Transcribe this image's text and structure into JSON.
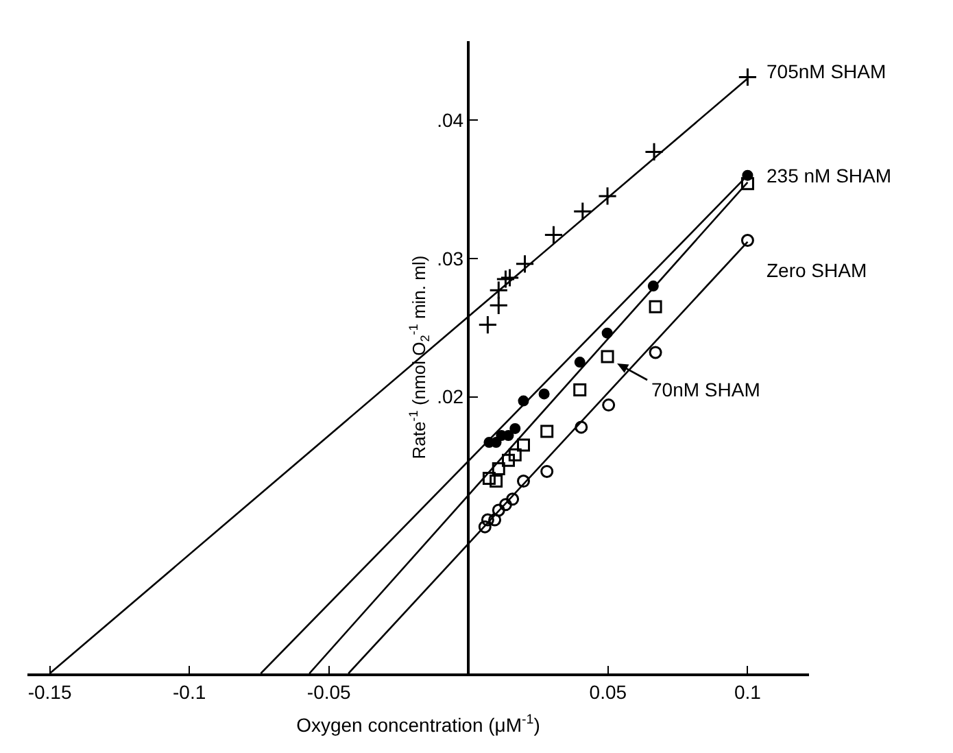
{
  "chart_data": {
    "type": "scatter",
    "xlabel": "Oxygen concentration (μM$^{-1}$)",
    "ylabel": "Rate$^{-1}$ (nmol O$_{2}$$^{-1}$ min. ml)",
    "xlim": [
      -0.158,
      0.122
    ],
    "ylim": [
      0,
      0.0457
    ],
    "xticks": [
      -0.15,
      -0.1,
      -0.05,
      0.05,
      0.1
    ],
    "yticks": [
      {
        "value": 0.02,
        "label": ".02"
      },
      {
        "value": 0.03,
        "label": ".03"
      },
      {
        "value": 0.04,
        "label": ".04"
      }
    ],
    "grid": false,
    "line_style": "solid",
    "series": [
      {
        "name": "705nM SHAM",
        "type": "scatter",
        "marker": "cross",
        "color": "#000000",
        "x": [
          0.0069,
          0.0108,
          0.0108,
          0.0133,
          0.0148,
          0.0202,
          0.0305,
          0.0409,
          0.0498,
          0.0665,
          0.1
        ],
        "values": [
          0.0252,
          0.0266,
          0.0277,
          0.0285,
          0.0286,
          0.0296,
          0.0317,
          0.0334,
          0.0345,
          0.0377,
          0.0431
        ]
      },
      {
        "name": "235 nM SHAM",
        "type": "scatter",
        "marker": "circle",
        "color": "#000000",
        "x": [
          0.0074,
          0.0099,
          0.0118,
          0.0143,
          0.0167,
          0.0197,
          0.0271,
          0.0399,
          0.0497,
          0.0662,
          0.1
        ],
        "values": [
          0.0167,
          0.0167,
          0.0172,
          0.0172,
          0.0177,
          0.0197,
          0.0202,
          0.0225,
          0.0246,
          0.028,
          0.036
        ]
      },
      {
        "name": "Zero SHAM",
        "type": "scatter",
        "marker": "circle-open",
        "color": "#000000",
        "x": [
          0.0059,
          0.0069,
          0.0094,
          0.0108,
          0.0133,
          0.0158,
          0.0197,
          0.0281,
          0.0404,
          0.0502,
          0.067,
          0.1
        ],
        "values": [
          0.0106,
          0.0111,
          0.0111,
          0.0118,
          0.0122,
          0.0126,
          0.0139,
          0.0146,
          0.0178,
          0.0194,
          0.0232,
          0.0313
        ]
      },
      {
        "name": "70nM SHAM",
        "type": "scatter",
        "marker": "square-open",
        "color": "#000000",
        "x": [
          0.0074,
          0.0099,
          0.0108,
          0.0143,
          0.0167,
          0.0197,
          0.0281,
          0.0399,
          0.0498,
          0.067,
          0.1
        ],
        "values": [
          0.0141,
          0.0139,
          0.0148,
          0.0154,
          0.0158,
          0.0165,
          0.0175,
          0.0205,
          0.0229,
          0.0265,
          0.0354
        ]
      },
      {
        "type": "line",
        "color": "#000000",
        "x": [
          -0.15,
          0.1
        ],
        "values": [
          0,
          0.043
        ]
      },
      {
        "type": "line",
        "color": "#000000",
        "x": [
          -0.0744,
          0.1
        ],
        "values": [
          0,
          0.036
        ]
      },
      {
        "type": "line",
        "color": "#000000",
        "x": [
          -0.043,
          0.1
        ],
        "values": [
          0,
          0.0312
        ]
      },
      {
        "type": "line",
        "color": "#000000",
        "x": [
          -0.057,
          0.1
        ],
        "values": [
          0,
          0.0355
        ]
      }
    ]
  }
}
